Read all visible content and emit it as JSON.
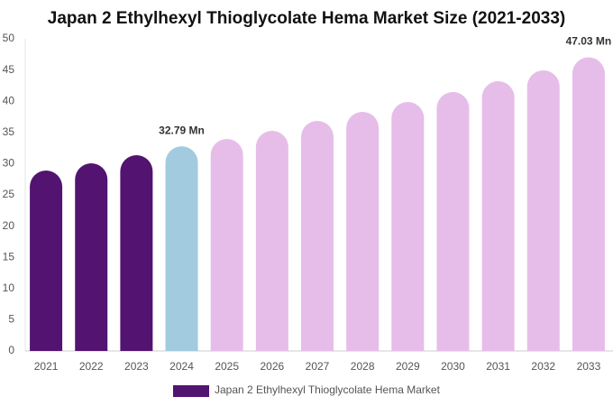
{
  "chart_data": {
    "type": "bar",
    "title": "Japan 2 Ethylhexyl Thioglycolate Hema Market Size (2021-2033)",
    "categories": [
      "2021",
      "2022",
      "2023",
      "2024",
      "2025",
      "2026",
      "2027",
      "2028",
      "2029",
      "2030",
      "2031",
      "2032",
      "2033"
    ],
    "series": [
      {
        "name": "Japan 2 Ethylhexyl Thioglycolate Hema Market",
        "color": "#521470",
        "colors": [
          "#521470",
          "#521470",
          "#521470",
          "#a3cbe0",
          "#e6bde9",
          "#e6bde9",
          "#e6bde9",
          "#e6bde9",
          "#e6bde9",
          "#e6bde9",
          "#e6bde9",
          "#e6bde9",
          "#e6bde9"
        ],
        "values": [
          28.9,
          30.06,
          31.36,
          32.79,
          33.96,
          35.26,
          36.85,
          38.3,
          39.88,
          41.47,
          43.2,
          44.94,
          47.03
        ],
        "value_labels": [
          null,
          null,
          null,
          "32.79 Mn",
          null,
          null,
          null,
          null,
          null,
          null,
          null,
          null,
          "47.03 Mn"
        ]
      }
    ],
    "ylim": [
      0,
      50
    ],
    "yticks": [
      0,
      5,
      10,
      15,
      20,
      25,
      30,
      35,
      40,
      45,
      50
    ],
    "grid": false,
    "legend": "bottom"
  }
}
